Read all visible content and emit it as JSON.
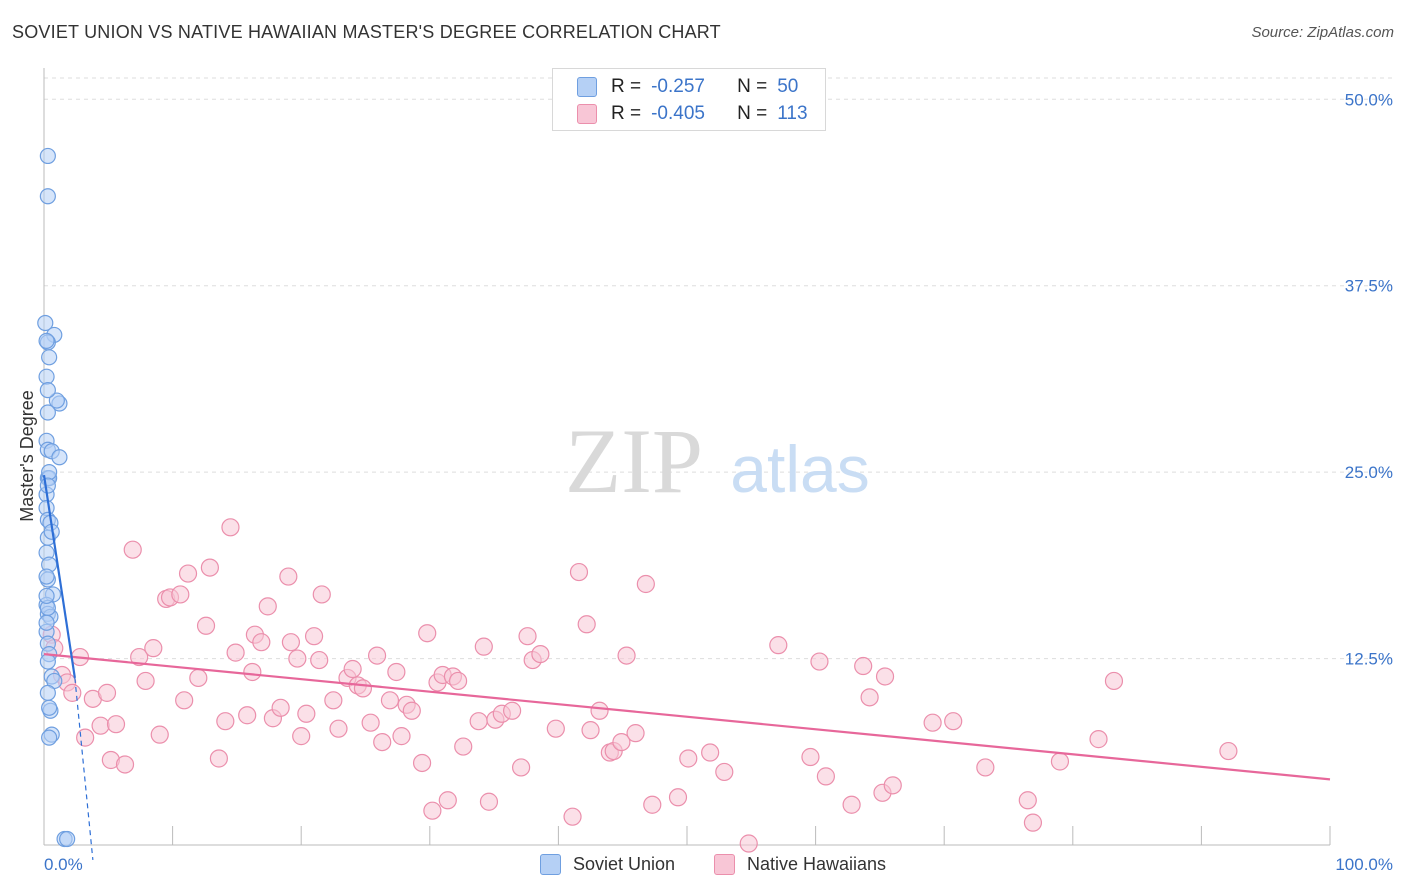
{
  "title": "SOVIET UNION VS NATIVE HAWAIIAN MASTER'S DEGREE CORRELATION CHART",
  "source": "Source: ZipAtlas.com",
  "watermark": {
    "zip": "ZIP",
    "atlas": "atlas"
  },
  "colors": {
    "blue_fill": "#b5d0f5",
    "blue_stroke": "#6f9fe0",
    "blue_line": "#2e6fd6",
    "pink_fill": "#f8c6d6",
    "pink_stroke": "#eb8fac",
    "pink_line": "#e7679a",
    "tick_text": "#3b74c9",
    "grid": "#dddddd"
  },
  "legend": [
    {
      "r_label": "R =",
      "r_value": "-0.257",
      "n_label": "N =",
      "n_value": "50"
    },
    {
      "r_label": "R =",
      "r_value": "-0.405",
      "n_label": "N =",
      "n_value": "113"
    }
  ],
  "bottom_legend": [
    {
      "label": "Soviet Union"
    },
    {
      "label": "Native Hawaiians"
    }
  ],
  "chart_data": {
    "type": "scatter",
    "title": "SOVIET UNION VS NATIVE HAWAIIAN MASTER'S DEGREE CORRELATION CHART",
    "xlabel": "",
    "ylabel": "Master's Degree",
    "xlim": [
      0,
      100
    ],
    "ylim": [
      0,
      52.5
    ],
    "x_tick_labels": [
      "0.0%",
      "100.0%"
    ],
    "y_ticks": [
      12.5,
      25.0,
      37.5,
      50.0
    ],
    "y_tick_labels": [
      "12.5%",
      "25.0%",
      "37.5%",
      "50.0%"
    ],
    "grid": true,
    "series": [
      {
        "name": "Soviet Union",
        "color": "#6f9fe0",
        "points": [
          [
            0.3,
            46.2
          ],
          [
            0.3,
            43.5
          ],
          [
            0.1,
            35.0
          ],
          [
            0.8,
            34.2
          ],
          [
            0.3,
            33.7
          ],
          [
            0.4,
            32.7
          ],
          [
            0.2,
            31.4
          ],
          [
            1.2,
            29.6
          ],
          [
            1.0,
            29.8
          ],
          [
            0.3,
            29.0
          ],
          [
            0.2,
            27.1
          ],
          [
            0.3,
            26.5
          ],
          [
            0.6,
            26.4
          ],
          [
            1.2,
            26.0
          ],
          [
            0.3,
            24.6
          ],
          [
            0.4,
            24.6
          ],
          [
            0.2,
            23.5
          ],
          [
            0.2,
            22.6
          ],
          [
            0.3,
            21.8
          ],
          [
            0.5,
            21.6
          ],
          [
            0.3,
            20.6
          ],
          [
            0.2,
            19.6
          ],
          [
            0.4,
            18.8
          ],
          [
            0.3,
            17.8
          ],
          [
            0.7,
            16.8
          ],
          [
            0.2,
            16.1
          ],
          [
            0.3,
            15.5
          ],
          [
            0.5,
            15.3
          ],
          [
            0.2,
            14.3
          ],
          [
            0.3,
            13.5
          ],
          [
            0.4,
            12.8
          ],
          [
            0.3,
            12.3
          ],
          [
            0.6,
            11.3
          ],
          [
            0.8,
            11.0
          ],
          [
            0.3,
            10.2
          ],
          [
            0.5,
            9.0
          ],
          [
            0.6,
            7.4
          ],
          [
            0.4,
            7.2
          ],
          [
            1.6,
            0.4
          ],
          [
            1.8,
            0.4
          ],
          [
            0.2,
            18.0
          ],
          [
            0.3,
            15.9
          ],
          [
            0.2,
            14.9
          ],
          [
            0.4,
            25.0
          ],
          [
            0.3,
            24.1
          ],
          [
            0.2,
            16.7
          ],
          [
            0.4,
            9.2
          ],
          [
            0.3,
            30.5
          ],
          [
            0.2,
            33.8
          ],
          [
            0.6,
            21.0
          ]
        ]
      },
      {
        "name": "Native Hawaiians",
        "color": "#eb8fac",
        "points": [
          [
            0.6,
            14.1
          ],
          [
            0.8,
            13.2
          ],
          [
            1.4,
            11.4
          ],
          [
            1.8,
            10.9
          ],
          [
            2.2,
            10.2
          ],
          [
            2.8,
            12.6
          ],
          [
            3.2,
            7.2
          ],
          [
            3.8,
            9.8
          ],
          [
            4.4,
            8.0
          ],
          [
            4.9,
            10.2
          ],
          [
            5.2,
            5.7
          ],
          [
            5.6,
            8.1
          ],
          [
            6.3,
            5.4
          ],
          [
            6.9,
            19.8
          ],
          [
            7.4,
            12.6
          ],
          [
            7.9,
            11.0
          ],
          [
            8.5,
            13.2
          ],
          [
            9.0,
            7.4
          ],
          [
            9.5,
            16.5
          ],
          [
            9.8,
            16.6
          ],
          [
            10.6,
            16.8
          ],
          [
            10.9,
            9.7
          ],
          [
            11.2,
            18.2
          ],
          [
            12.0,
            11.2
          ],
          [
            12.6,
            14.7
          ],
          [
            12.9,
            18.6
          ],
          [
            13.6,
            5.8
          ],
          [
            14.1,
            8.3
          ],
          [
            14.5,
            21.3
          ],
          [
            14.9,
            12.9
          ],
          [
            15.8,
            8.7
          ],
          [
            16.2,
            11.6
          ],
          [
            16.4,
            14.1
          ],
          [
            16.9,
            13.6
          ],
          [
            17.4,
            16.0
          ],
          [
            17.8,
            8.5
          ],
          [
            18.4,
            9.2
          ],
          [
            19.0,
            18.0
          ],
          [
            19.2,
            13.6
          ],
          [
            19.7,
            12.5
          ],
          [
            20.0,
            7.3
          ],
          [
            20.4,
            8.8
          ],
          [
            21.0,
            14.0
          ],
          [
            21.4,
            12.4
          ],
          [
            21.6,
            16.8
          ],
          [
            22.5,
            9.7
          ],
          [
            22.9,
            7.8
          ],
          [
            23.6,
            11.2
          ],
          [
            24.0,
            11.8
          ],
          [
            24.4,
            10.7
          ],
          [
            24.8,
            10.5
          ],
          [
            25.4,
            8.2
          ],
          [
            25.9,
            12.7
          ],
          [
            26.3,
            6.9
          ],
          [
            26.9,
            9.7
          ],
          [
            27.4,
            11.6
          ],
          [
            27.8,
            7.3
          ],
          [
            28.2,
            9.4
          ],
          [
            28.6,
            9.0
          ],
          [
            29.4,
            5.5
          ],
          [
            29.8,
            14.2
          ],
          [
            30.2,
            2.3
          ],
          [
            30.6,
            10.9
          ],
          [
            31.0,
            11.4
          ],
          [
            31.4,
            3.0
          ],
          [
            31.8,
            11.3
          ],
          [
            32.2,
            11.0
          ],
          [
            32.6,
            6.6
          ],
          [
            33.8,
            8.3
          ],
          [
            34.2,
            13.3
          ],
          [
            34.6,
            2.9
          ],
          [
            35.1,
            8.4
          ],
          [
            35.6,
            8.8
          ],
          [
            36.4,
            9.0
          ],
          [
            37.1,
            5.2
          ],
          [
            37.6,
            14.0
          ],
          [
            38.0,
            12.4
          ],
          [
            38.6,
            12.8
          ],
          [
            39.8,
            7.8
          ],
          [
            41.1,
            1.9
          ],
          [
            41.6,
            18.3
          ],
          [
            42.2,
            14.8
          ],
          [
            42.5,
            7.7
          ],
          [
            43.2,
            9.0
          ],
          [
            44.0,
            6.2
          ],
          [
            44.3,
            6.3
          ],
          [
            44.9,
            6.9
          ],
          [
            45.3,
            12.7
          ],
          [
            46.0,
            7.5
          ],
          [
            46.8,
            17.5
          ],
          [
            47.3,
            2.7
          ],
          [
            49.3,
            3.2
          ],
          [
            50.1,
            5.8
          ],
          [
            51.8,
            6.2
          ],
          [
            52.9,
            4.9
          ],
          [
            54.8,
            0.1
          ],
          [
            57.1,
            13.4
          ],
          [
            59.6,
            5.9
          ],
          [
            60.3,
            12.3
          ],
          [
            60.8,
            4.6
          ],
          [
            62.8,
            2.7
          ],
          [
            63.7,
            12.0
          ],
          [
            64.2,
            9.9
          ],
          [
            65.2,
            3.5
          ],
          [
            65.4,
            11.3
          ],
          [
            66.0,
            4.0
          ],
          [
            69.1,
            8.2
          ],
          [
            70.7,
            8.3
          ],
          [
            73.2,
            5.2
          ],
          [
            76.5,
            3.0
          ],
          [
            76.9,
            1.5
          ],
          [
            79.0,
            5.6
          ],
          [
            82.0,
            7.1
          ],
          [
            83.2,
            11.0
          ],
          [
            92.1,
            6.3
          ]
        ]
      }
    ],
    "trendlines": [
      {
        "series": "Soviet Union",
        "from": [
          0,
          24.8
        ],
        "to": [
          2.4,
          11.2
        ],
        "dashed_to": [
          3.8,
          -1.0
        ]
      },
      {
        "series": "Native Hawaiians",
        "from": [
          0,
          12.8
        ],
        "to": [
          100,
          4.4
        ]
      }
    ]
  }
}
